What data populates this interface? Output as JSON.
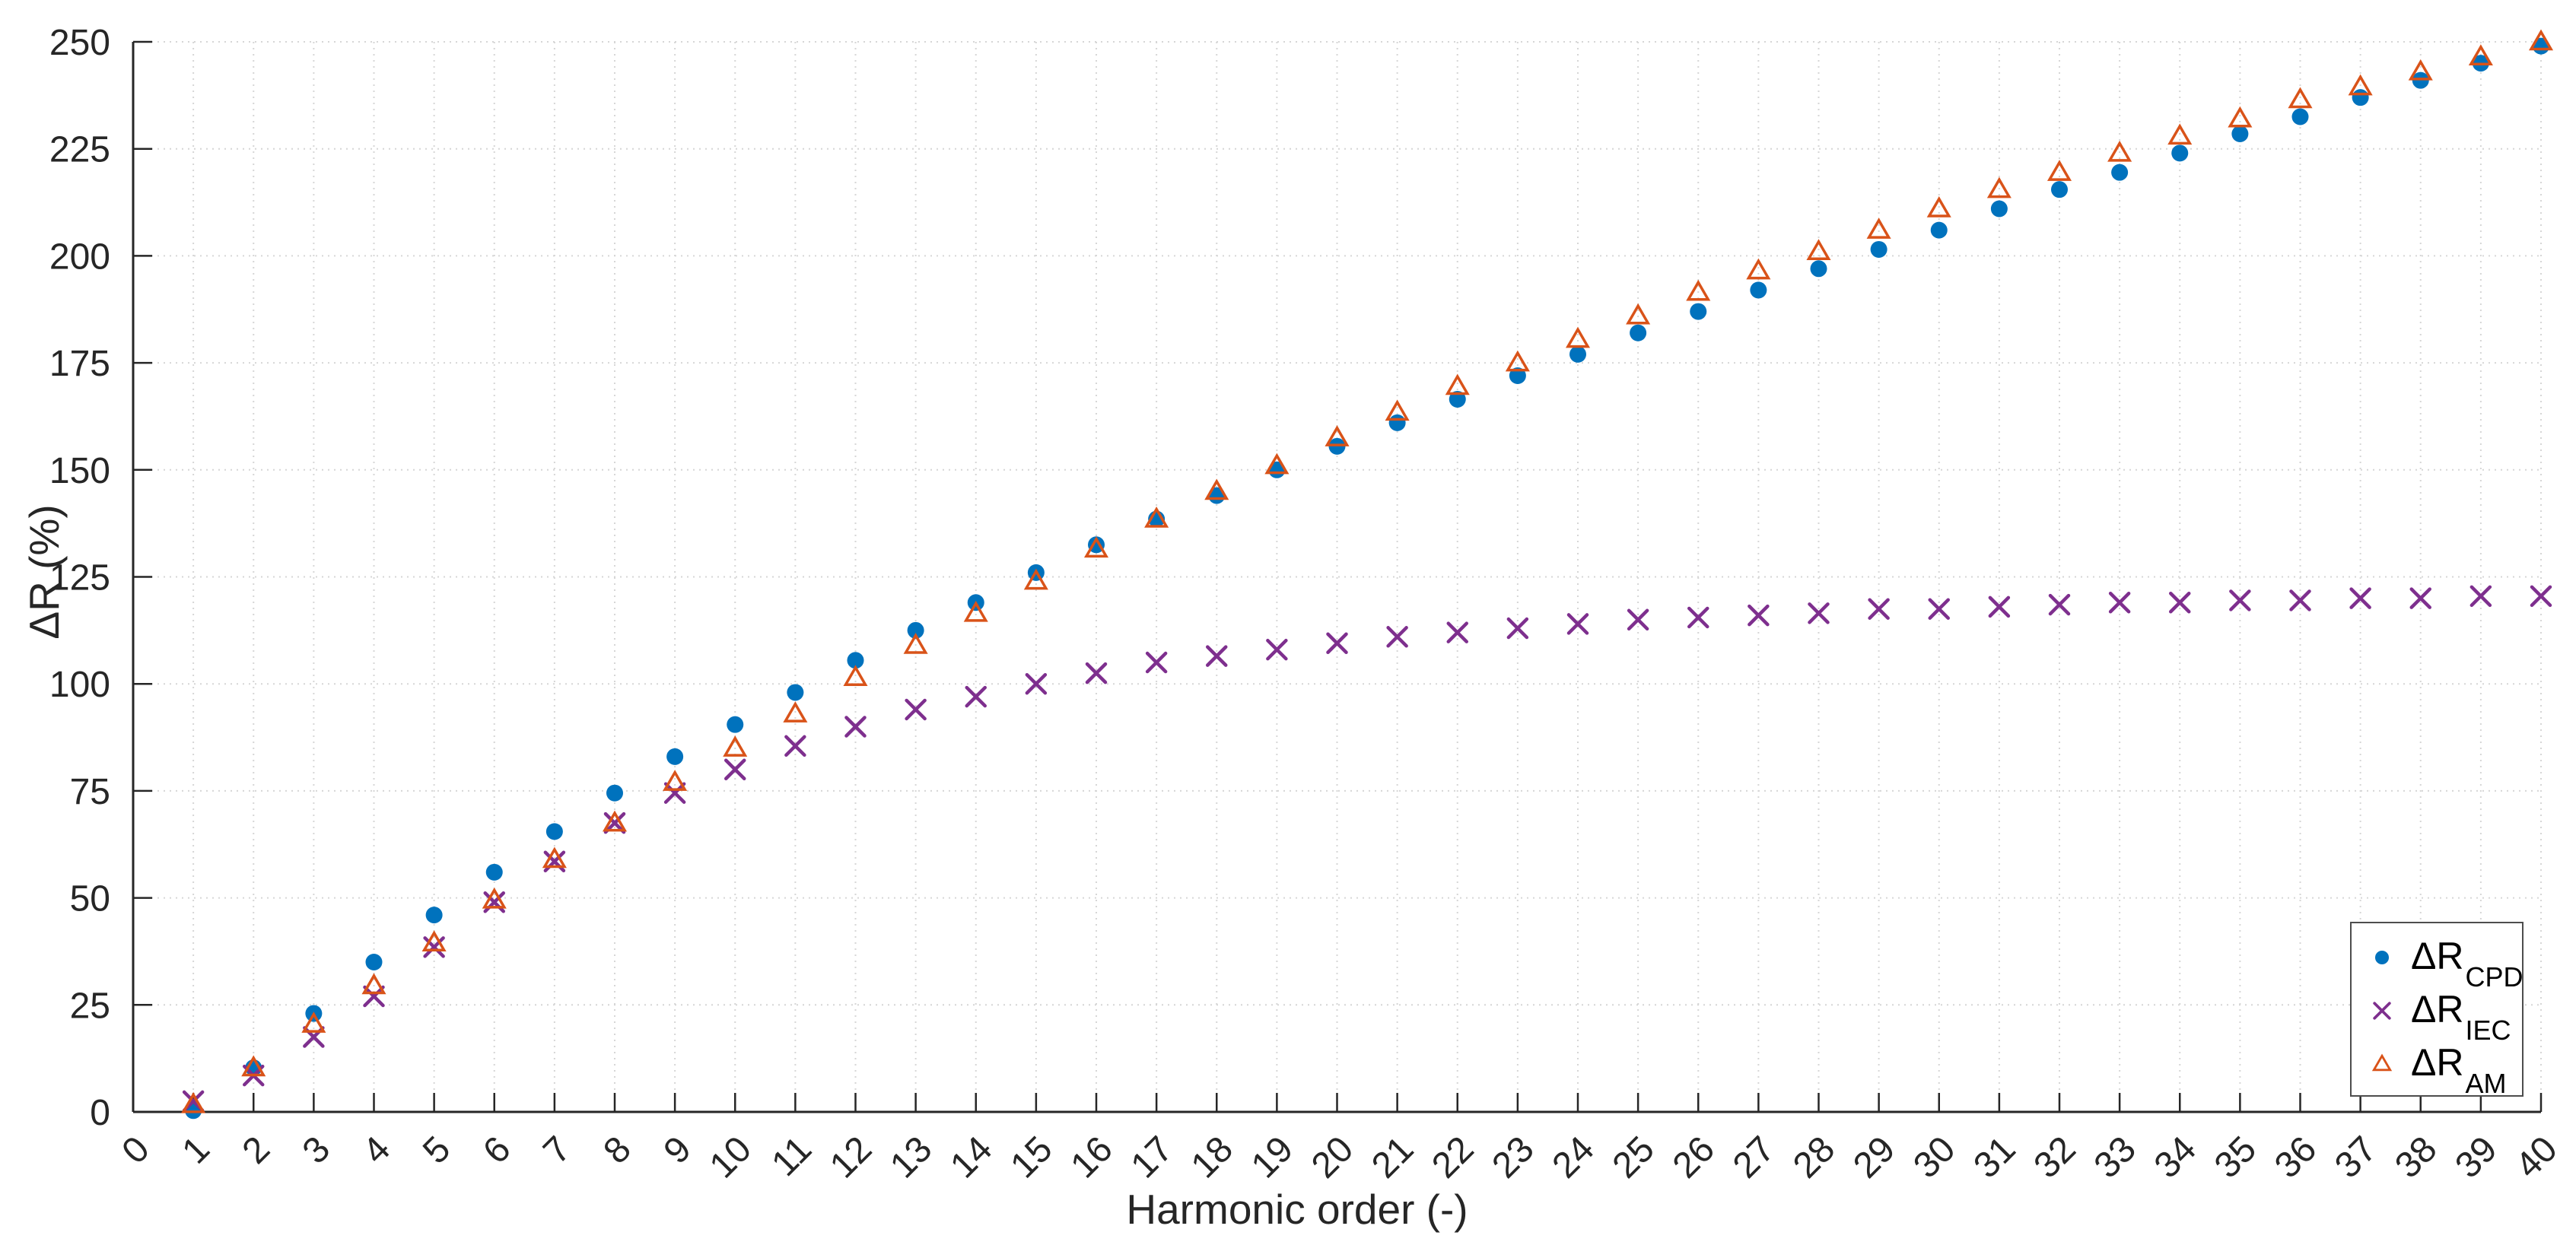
{
  "figure": {
    "background": "#ffffff",
    "axis_color": "#262626",
    "grid_color": "#d6d6d6",
    "tick_label_color": "#262626"
  },
  "chart_data": {
    "type": "scatter",
    "title": "",
    "xlabel": "Harmonic order (-)",
    "ylabel": "ΔR (%)",
    "xlim": [
      0,
      40
    ],
    "ylim": [
      0,
      250
    ],
    "x_ticks": [
      0,
      1,
      2,
      3,
      4,
      5,
      6,
      7,
      8,
      9,
      10,
      11,
      12,
      13,
      14,
      15,
      16,
      17,
      18,
      19,
      20,
      21,
      22,
      23,
      24,
      25,
      26,
      27,
      28,
      29,
      30,
      31,
      32,
      33,
      34,
      35,
      36,
      37,
      38,
      39,
      40
    ],
    "x_tick_rotation": 45,
    "y_ticks": [
      0,
      25,
      50,
      75,
      100,
      125,
      150,
      175,
      200,
      225,
      250
    ],
    "grid": true,
    "legend_position": "inside-bottom-right",
    "x": [
      1,
      2,
      3,
      4,
      5,
      6,
      7,
      8,
      9,
      10,
      11,
      12,
      13,
      14,
      15,
      16,
      17,
      18,
      19,
      20,
      21,
      22,
      23,
      24,
      25,
      26,
      27,
      28,
      29,
      30,
      31,
      32,
      33,
      34,
      35,
      36,
      37,
      38,
      39,
      40
    ],
    "series": [
      {
        "name": "ΔR_CPD",
        "label_main": "ΔR",
        "label_sub": "CPD",
        "marker": "circle",
        "color": "#0072BD",
        "values": [
          0.3,
          10.3,
          23,
          35,
          46,
          56,
          65.5,
          74.5,
          83,
          90.5,
          98,
          105.5,
          112.5,
          119,
          126,
          132.5,
          138.5,
          144,
          150,
          155.5,
          161,
          166.5,
          172,
          177,
          182,
          187,
          192,
          197,
          201.5,
          206,
          211,
          215.5,
          219.5,
          224,
          228.5,
          232.5,
          237,
          241,
          245,
          249
        ]
      },
      {
        "name": "ΔR_IEC",
        "label_main": "ΔR",
        "label_sub": "IEC",
        "marker": "x",
        "color": "#7E2F8E",
        "values": [
          2.5,
          8.5,
          17.5,
          27,
          38.5,
          49,
          58.5,
          67.5,
          74.5,
          80,
          85.5,
          90,
          94,
          97,
          100,
          102.5,
          105,
          106.5,
          108,
          109.5,
          111,
          112,
          113,
          114,
          115,
          115.5,
          116,
          116.5,
          117.5,
          117.5,
          118,
          118.5,
          119,
          119,
          119.5,
          119.5,
          120,
          120,
          120.5,
          120.5
        ]
      },
      {
        "name": "ΔR_AM",
        "label_main": "ΔR",
        "label_sub": "AM",
        "marker": "triangle-open",
        "color": "#D95319",
        "values": [
          1.7,
          10.3,
          20.5,
          29.5,
          39.5,
          49.5,
          59,
          67.5,
          77,
          85,
          93,
          101.5,
          109,
          116.5,
          124,
          131.5,
          138.5,
          145,
          151,
          157.5,
          163.5,
          169.5,
          175,
          180.5,
          186,
          191.5,
          196.5,
          201,
          206,
          211,
          215.5,
          219.5,
          224,
          228,
          232,
          236.5,
          239.5,
          243,
          246.5,
          250
        ]
      }
    ]
  }
}
